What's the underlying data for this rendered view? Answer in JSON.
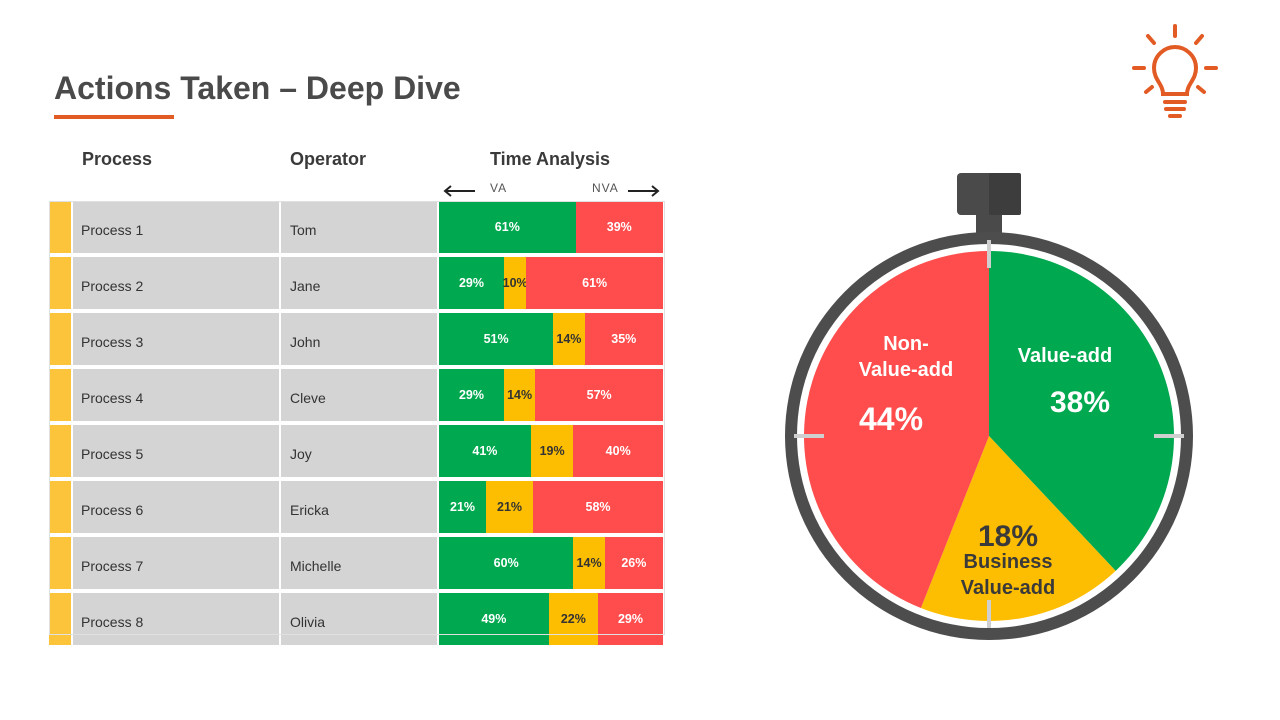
{
  "page": {
    "title": "Actions Taken – Deep Dive"
  },
  "table": {
    "headers": {
      "process": "Process",
      "operator": "Operator",
      "time_analysis": "Time Analysis",
      "va_label": "VA",
      "nva_label": "NVA"
    },
    "rows": [
      {
        "process": "Process 1",
        "operator": "Tom",
        "va": 61,
        "bva": 0,
        "nva": 39
      },
      {
        "process": "Process 2",
        "operator": "Jane",
        "va": 29,
        "bva": 10,
        "nva": 61
      },
      {
        "process": "Process 3",
        "operator": "John",
        "va": 51,
        "bva": 14,
        "nva": 35
      },
      {
        "process": "Process 4",
        "operator": "Cleve",
        "va": 29,
        "bva": 14,
        "nva": 57
      },
      {
        "process": "Process 5",
        "operator": "Joy",
        "va": 41,
        "bva": 19,
        "nva": 40
      },
      {
        "process": "Process 6",
        "operator": "Ericka",
        "va": 21,
        "bva": 21,
        "nva": 58
      },
      {
        "process": "Process 7",
        "operator": "Michelle",
        "va": 60,
        "bva": 14,
        "nva": 26
      },
      {
        "process": "Process 8",
        "operator": "Olivia",
        "va": 49,
        "bva": 22,
        "nva": 29
      }
    ]
  },
  "chart_data": [
    {
      "type": "bar",
      "orientation": "horizontal",
      "stacked": true,
      "normalized": true,
      "categories": [
        "Process 1",
        "Process 2",
        "Process 3",
        "Process 4",
        "Process 5",
        "Process 6",
        "Process 7",
        "Process 8"
      ],
      "series": [
        {
          "values": [
            61,
            29,
            51,
            29,
            41,
            21,
            60,
            49
          ],
          "color": "#00a94f"
        },
        {
          "values": [
            0,
            10,
            14,
            14,
            19,
            21,
            14,
            22
          ],
          "color": "#fdbd00"
        },
        {
          "values": [
            39,
            61,
            35,
            57,
            40,
            58,
            26,
            29
          ],
          "color": "#ff4c4c"
        }
      ],
      "title": "Time Analysis",
      "unit": "%"
    },
    {
      "type": "pie",
      "slices": [
        {
          "label": "Value-add",
          "value": 38,
          "color": "#00a94f"
        },
        {
          "label": "Business Value-add",
          "value": 18,
          "color": "#fdbd00"
        },
        {
          "label": "Non-Value-add",
          "value": 44,
          "color": "#ff4c4c"
        }
      ],
      "labels": {
        "va_line1": "Value-add",
        "va_pct": "38%",
        "bva_pct": "18%",
        "bva_line1": "Business",
        "bva_line2": "Value-add",
        "nva_line1": "Non-",
        "nva_line2": "Value-add",
        "nva_pct": "44%"
      },
      "unit": "%"
    }
  ],
  "icons": {
    "bulb": "lightbulb-icon",
    "left_arrow": "arrow-left-icon",
    "right_arrow": "arrow-right-icon"
  },
  "colors": {
    "accent": "#e35b24",
    "va": "#00a94f",
    "bva": "#fdbd00",
    "nva": "#ff4c4c",
    "row_accent": "#fcc43a"
  }
}
